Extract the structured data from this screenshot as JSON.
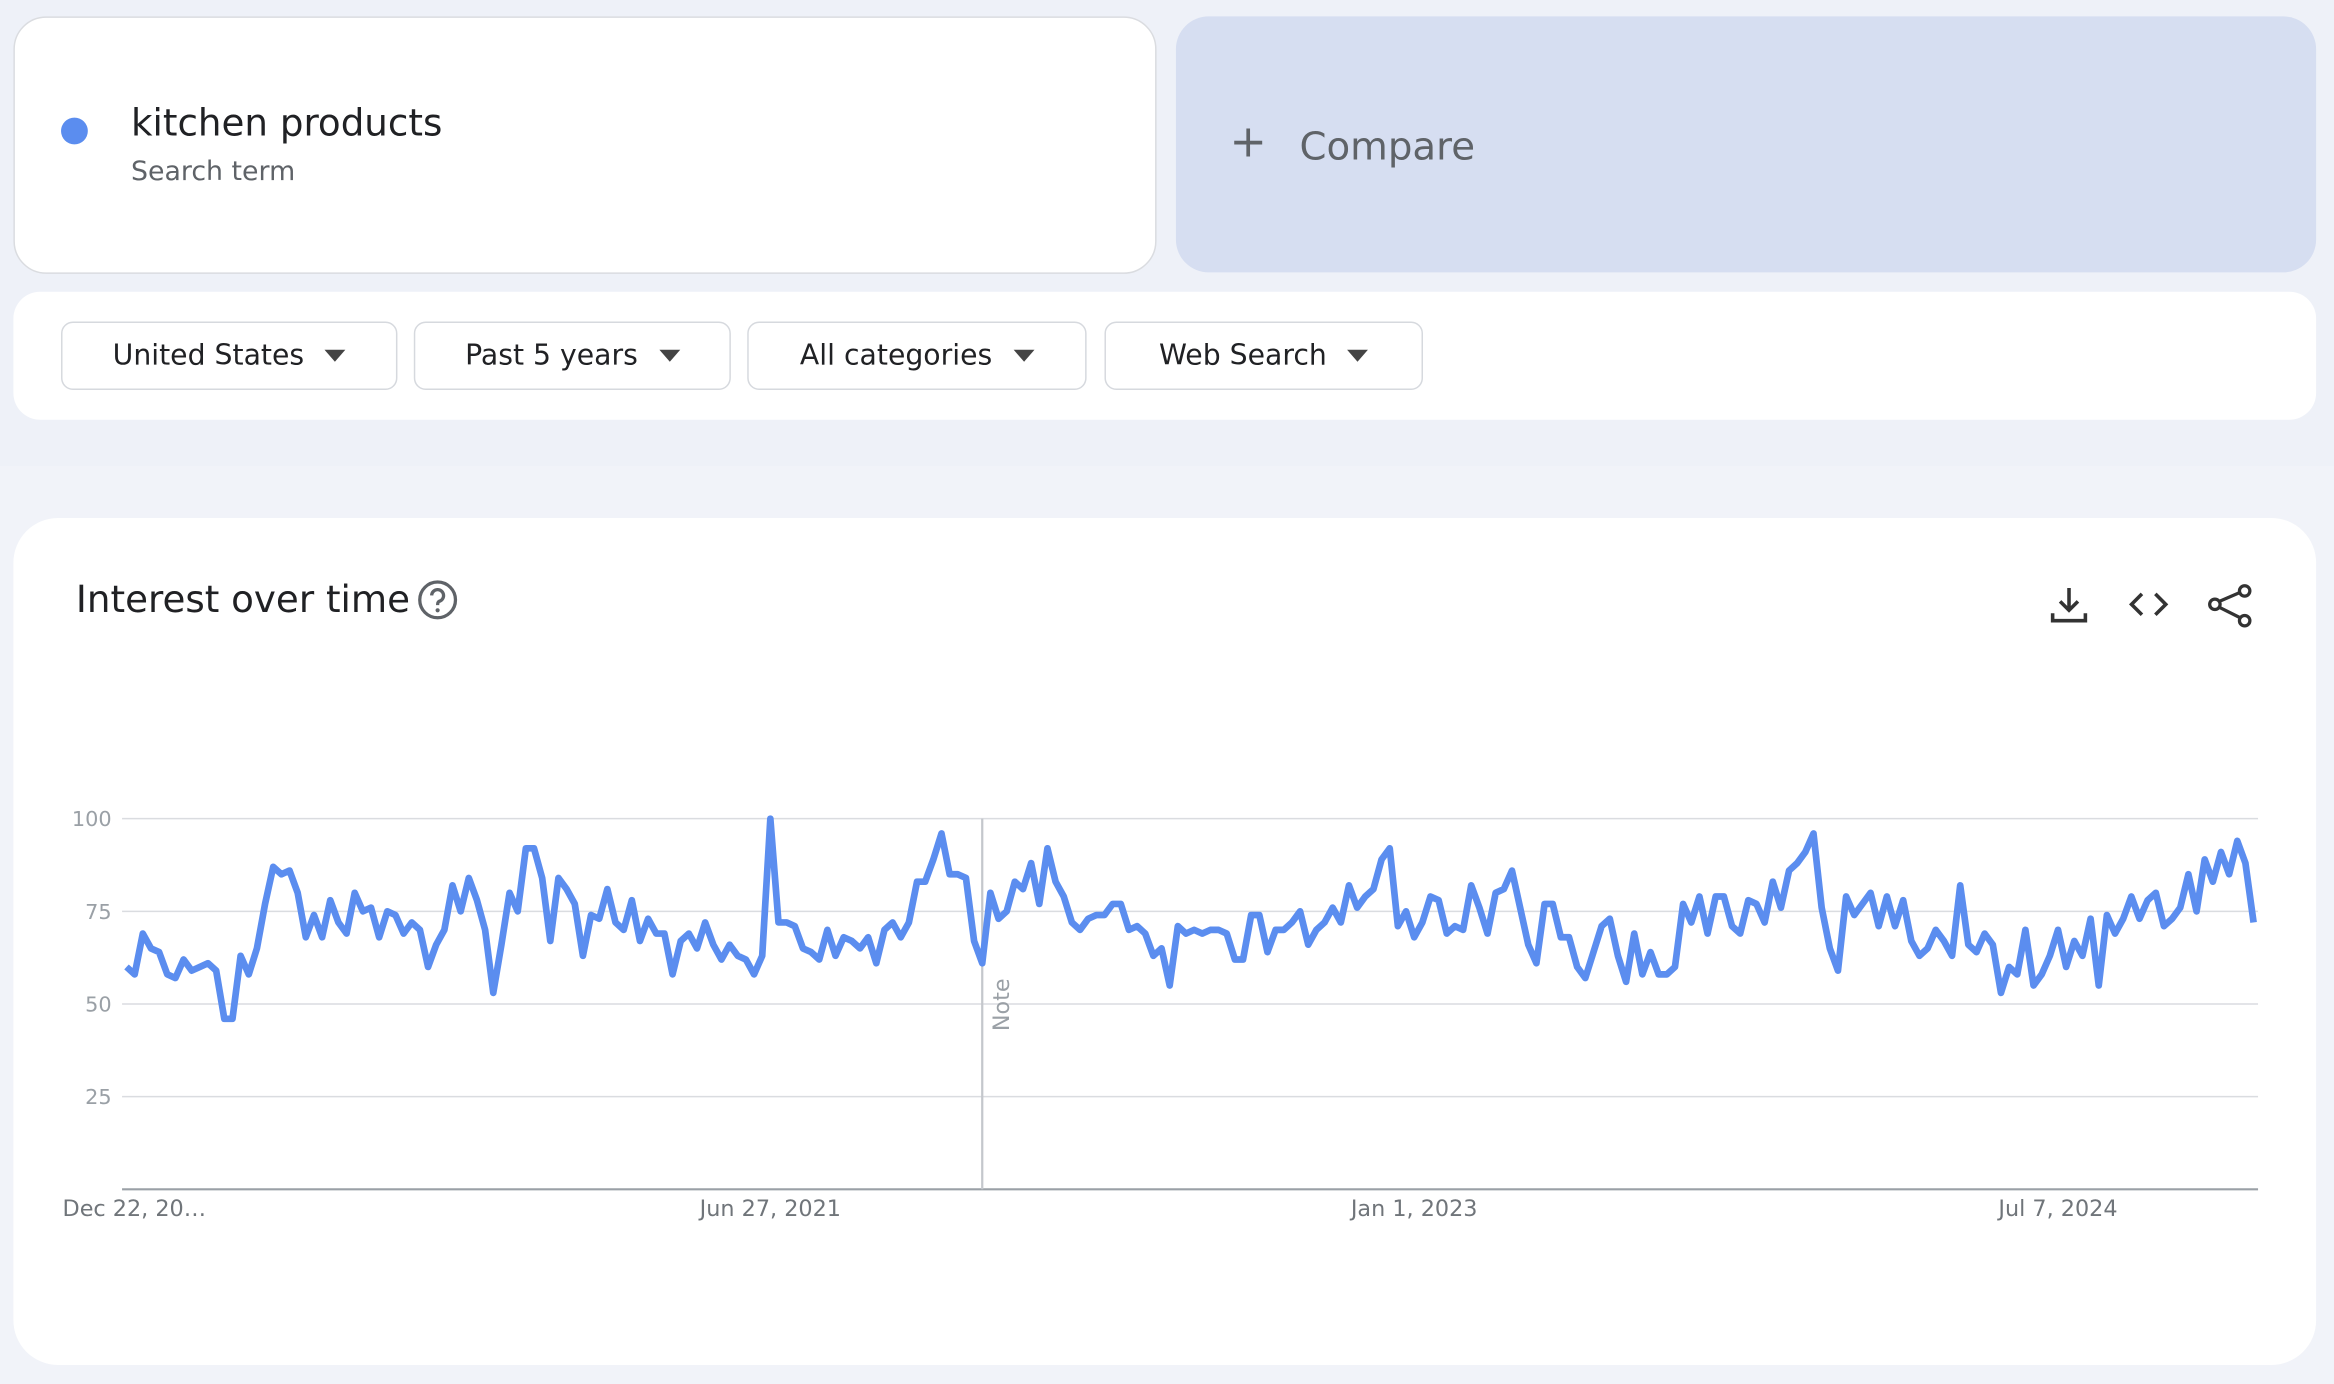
{
  "compare": {
    "label": "Compare"
  },
  "search_term": {
    "sublabel": "Search term"
  },
  "filters": [
    "United States",
    "Past 5 years",
    "All categories",
    "Web Search"
  ],
  "panel": {
    "title": "Interest over time"
  },
  "chart_data": {
    "type": "line",
    "note": "Note",
    "grid": true,
    "ylim": [
      0,
      100
    ],
    "yticks": [
      25,
      50,
      75,
      100
    ],
    "series": [
      {
        "name": "kitchen products",
        "color": "#5b8def",
        "values": [
          60,
          58,
          69,
          65,
          64,
          58,
          57,
          62,
          59,
          60,
          61,
          59,
          46,
          46,
          63,
          58,
          65,
          77,
          87,
          85,
          86,
          80,
          68,
          74,
          68,
          78,
          72,
          69,
          80,
          75,
          76,
          68,
          75,
          74,
          69,
          72,
          70,
          60,
          66,
          70,
          82,
          75,
          84,
          78,
          70,
          53,
          66,
          80,
          75,
          92,
          92,
          84,
          67,
          84,
          81,
          77,
          63,
          74,
          73,
          81,
          72,
          70,
          78,
          67,
          73,
          69,
          69,
          58,
          67,
          69,
          65,
          72,
          66,
          62,
          66,
          63,
          62,
          58,
          63,
          100,
          72,
          72,
          71,
          65,
          64,
          62,
          70,
          63,
          68,
          67,
          65,
          68,
          61,
          70,
          72,
          68,
          72,
          83,
          83,
          89,
          96,
          85,
          85,
          84,
          67,
          61,
          80,
          73,
          75,
          83,
          81,
          88,
          77,
          92,
          83,
          79,
          72,
          70,
          73,
          74,
          74,
          77,
          77,
          70,
          71,
          69,
          63,
          65,
          55,
          71,
          69,
          70,
          69,
          70,
          70,
          69,
          62,
          62,
          74,
          74,
          64,
          70,
          70,
          72,
          75,
          66,
          70,
          72,
          76,
          72,
          82,
          76,
          79,
          81,
          89,
          92,
          71,
          75,
          68,
          72,
          79,
          78,
          69,
          71,
          70,
          82,
          76,
          69,
          80,
          81,
          86,
          76,
          66,
          61,
          77,
          77,
          68,
          68,
          60,
          57,
          64,
          71,
          73,
          63,
          56,
          69,
          58,
          64,
          58,
          58,
          60,
          77,
          72,
          79,
          69,
          79,
          79,
          71,
          69,
          78,
          77,
          72,
          83,
          76,
          86,
          88,
          91,
          96,
          76,
          65,
          59,
          79,
          74,
          77,
          80,
          71,
          79,
          71,
          78,
          67,
          63,
          65,
          70,
          67,
          63,
          82,
          66,
          64,
          69,
          66,
          53,
          60,
          58,
          70,
          55,
          58,
          63,
          70,
          60,
          67,
          63,
          73,
          55,
          74,
          69,
          73,
          79,
          73,
          78,
          80,
          71,
          73,
          76,
          85,
          75,
          89,
          83,
          91,
          85,
          94,
          88,
          72
        ]
      }
    ],
    "categories": [
      "Dec 22, 20…",
      null,
      null,
      null,
      null,
      null,
      null,
      null,
      null,
      null,
      null,
      null,
      null,
      null,
      null,
      null,
      null,
      null,
      null,
      null,
      null,
      null,
      null,
      null,
      null,
      null,
      null,
      null,
      null,
      null,
      null,
      null,
      null,
      null,
      null,
      null,
      null,
      null,
      null,
      null,
      null,
      null,
      null,
      null,
      null,
      null,
      null,
      null,
      null,
      null,
      null,
      null,
      null,
      null,
      null,
      null,
      null,
      null,
      null,
      null,
      null,
      null,
      null,
      null,
      null,
      null,
      null,
      null,
      null,
      null,
      null,
      null,
      null,
      null,
      null,
      null,
      null,
      null,
      null,
      "Jun 27, 2021",
      null,
      null,
      null,
      null,
      null,
      null,
      null,
      null,
      null,
      null,
      null,
      null,
      null,
      null,
      null,
      null,
      null,
      null,
      null,
      null,
      null,
      null,
      null,
      null,
      null,
      null,
      null,
      null,
      null,
      null,
      null,
      null,
      null,
      null,
      null,
      null,
      null,
      null,
      null,
      null,
      null,
      null,
      null,
      null,
      null,
      null,
      null,
      null,
      null,
      null,
      null,
      null,
      null,
      null,
      null,
      null,
      null,
      null,
      null,
      null,
      null,
      null,
      null,
      null,
      null,
      null,
      null,
      null,
      null,
      null,
      null,
      null,
      null,
      null,
      null,
      null,
      null,
      null,
      "Jan 1, 2023",
      null,
      null,
      null,
      null,
      null,
      null,
      null,
      null,
      null,
      null,
      null,
      null,
      null,
      null,
      null,
      null,
      null,
      null,
      null,
      null,
      null,
      null,
      null,
      null,
      null,
      null,
      null,
      null,
      null,
      null,
      null,
      null,
      null,
      null,
      null,
      null,
      null,
      null,
      null,
      null,
      null,
      null,
      null,
      null,
      null,
      null,
      null,
      null,
      null,
      null,
      null,
      null,
      null,
      null,
      null,
      null,
      null,
      null,
      null,
      null,
      null,
      null,
      null,
      null,
      null,
      null,
      null,
      null,
      null,
      null,
      null,
      null,
      null,
      null,
      null,
      null,
      null,
      null,
      "Jul 7, 2024",
      null,
      null,
      null,
      null,
      null,
      null,
      null,
      null,
      null,
      null,
      null,
      null,
      null,
      null,
      null,
      null,
      null,
      null,
      null,
      null,
      null,
      null,
      null,
      null
    ]
  }
}
